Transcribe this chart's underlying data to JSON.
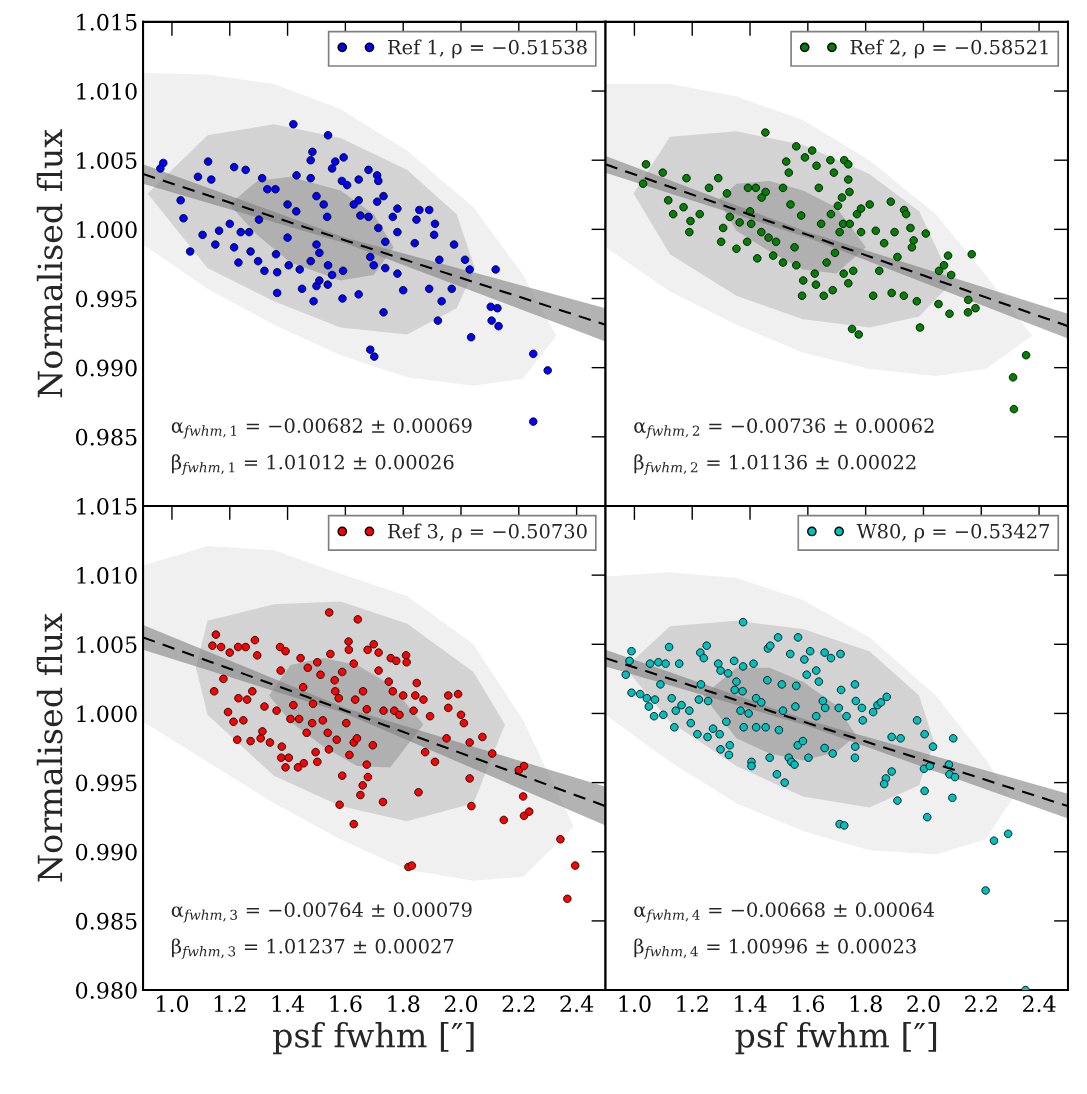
{
  "chart_data": [
    {
      "type": "scatter",
      "ylabel": "Normalised flux",
      "xlim": [
        0.9,
        2.5
      ],
      "ylim": [
        0.98,
        1.015
      ],
      "xticks": [
        {
          "value": 1,
          "label": null
        },
        {
          "value": 1.2,
          "label": null
        },
        {
          "value": 1.4,
          "label": null
        },
        {
          "value": 1.6,
          "label": null
        },
        {
          "value": 1.8,
          "label": null
        },
        {
          "value": 2,
          "label": null
        },
        {
          "value": 2.2,
          "label": null
        },
        {
          "value": 2.4,
          "label": null
        }
      ],
      "yticks": [
        0.985,
        {
          "value": 0.99,
          "label": "0.990"
        },
        0.995,
        {
          "value": 1.0,
          "label": "1.000"
        },
        1.005,
        {
          "value": 1.01,
          "label": "1.010"
        },
        1.015
      ],
      "tick_labels": "y",
      "legend": "top right",
      "annotations": [
        "α$_{fwhm,1}$ = −0.00682 ± 0.00069",
        "β$_{fwhm,1}$ = 1.01012 ± 0.00026"
      ],
      "series": [
        {
          "type": "area",
          "color": "#f0f0f0",
          "x": [
            0.9,
            1.123,
            1.353,
            1.583,
            1.813,
            2.043,
            2.215,
            2.33,
            2.215,
            2.043,
            1.813,
            1.583,
            1.353,
            1.123,
            0.9
          ],
          "values": [
            1.0113,
            1.0112,
            1.0105,
            1.0087,
            1.0057,
            1.0016,
            0.9967,
            0.9923,
            0.9892,
            0.9887,
            0.9893,
            0.9909,
            0.9931,
            0.9957,
            0.9989
          ]
        },
        {
          "type": "area",
          "color": "#d3d3d3",
          "x": [
            0.916,
            1.123,
            1.353,
            1.583,
            1.813,
            1.985,
            2.048,
            1.985,
            1.813,
            1.583,
            1.353,
            1.123
          ],
          "values": [
            1.0026,
            1.0068,
            1.0076,
            1.0066,
            1.0043,
            1.0011,
            0.9972,
            0.9943,
            0.9924,
            0.9929,
            0.9948,
            0.9972
          ]
        },
        {
          "type": "area",
          "color": "#b0b0b0",
          "x": [
            1.198,
            1.295,
            1.41,
            1.583,
            1.698,
            1.767,
            1.698,
            1.583,
            1.41,
            1.295
          ],
          "values": [
            1.0018,
            1.0035,
            1.0038,
            1.0028,
            1.0011,
            0.9987,
            0.9967,
            0.9963,
            0.9976,
            0.9996
          ]
        },
        {
          "type": "scatter",
          "name": "Ref 1, ρ = −0.51538",
          "color": "#0000ff",
          "marker": "circle",
          "x": [
            1.42,
            1.54,
            0.97,
            1.125,
            1.215,
            1.255,
            1.03,
            1.063,
            1.04,
            1.106,
            1.15,
            1.2,
            1.136,
            1.09,
            1.215,
            1.23,
            1.272,
            1.298,
            1.32,
            1.364,
            1.364,
            1.312,
            1.33,
            1.358,
            1.4,
            1.43,
            1.4,
            1.404,
            1.442,
            1.45,
            1.49,
            1.5,
            1.51,
            1.5,
            1.51,
            1.48,
            1.431,
            1.48,
            1.486,
            1.48,
            1.5,
            1.525,
            1.537,
            1.54,
            1.554,
            1.539,
            1.59,
            1.594,
            1.565,
            1.554,
            1.606,
            1.588,
            1.629,
            1.646,
            1.652,
            1.646,
            1.68,
            1.71,
            1.714,
            1.732,
            1.71,
            1.68,
            1.714,
            1.764,
            1.78,
            1.78,
            1.738,
            1.738,
            1.698,
            1.686,
            1.646,
            1.592,
            1.732,
            1.686,
            1.7,
            1.78,
            1.8,
            1.84,
            1.846,
            1.856,
            1.89,
            1.91,
            1.907,
            1.89,
            1.976,
            1.925,
            1.933,
            1.92,
            1.968,
            2.014,
            2.03,
            2.035,
            2.103,
            2.12,
            2.126,
            2.13,
            2.106,
            2.25,
            2.3,
            2.25,
            0.96,
            1.163,
            1.238,
            1.267,
            1.36,
            1.301
          ],
          "values": [
            1.0076,
            1.0068,
            1.0048,
            1.0049,
            1.0045,
            1.0043,
            1.0021,
            0.9984,
            1.0008,
            0.9996,
            0.9989,
            1.0004,
            1.0036,
            1.0038,
            0.9987,
            0.9976,
            0.9984,
            0.9977,
            0.997,
            0.9954,
            0.9969,
            1.0037,
            1.0029,
            1.0029,
            1.0018,
            1.0013,
            0.9994,
            0.9974,
            0.9971,
            0.9957,
            0.9948,
            0.9959,
            0.9963,
            0.9989,
            0.9983,
            0.9977,
            1.0039,
            1.005,
            1.0056,
            1.0037,
            1.0024,
            1.0018,
            1.0009,
            0.9974,
            0.9967,
            0.996,
            0.995,
            1.0052,
            1.0049,
            1.0044,
            1.0032,
            1.0035,
            1.0018,
            1.0021,
            1.001,
            1.0036,
            1.0043,
            1.0039,
            1.0035,
            1.0024,
            1.002,
            1.0009,
            1.0001,
            1.0009,
            1.0015,
            0.9998,
            0.9991,
            0.9972,
            0.9974,
            0.998,
            0.9953,
            0.997,
            0.994,
            0.9913,
            0.9908,
            0.9968,
            0.9956,
            0.999,
            1.0007,
            1.0014,
            1.0014,
            1.0004,
            0.9996,
            0.9957,
            0.9989,
            0.9978,
            0.9948,
            0.9934,
            0.9957,
            0.9978,
            0.9971,
            0.9922,
            0.9944,
            0.9971,
            0.9943,
            0.993,
            0.9934,
            0.991,
            0.9898,
            0.9861,
            1.0044,
            0.9999,
            0.9998,
            0.9998,
            0.9982,
            1.0007
          ]
        },
        {
          "type": "line",
          "color": "#000000",
          "line_style": "dashed",
          "marker": "none",
          "x": [
            0.9,
            1.6,
            2.5
          ],
          "values": [
            1.004,
            0.9992,
            0.9931
          ],
          "lower": [
            1.0033,
            0.999,
            0.9919
          ],
          "upper": [
            1.0047,
            0.9994,
            0.9943
          ]
        }
      ]
    },
    {
      "type": "scatter",
      "xlim": [
        0.9,
        2.5
      ],
      "ylim": [
        0.98,
        1.015
      ],
      "xticks": [
        {
          "value": 1,
          "label": null
        },
        {
          "value": 1.2,
          "label": null
        },
        {
          "value": 1.4,
          "label": null
        },
        {
          "value": 1.6,
          "label": null
        },
        {
          "value": 1.8,
          "label": null
        },
        {
          "value": 2,
          "label": null
        },
        {
          "value": 2.2,
          "label": null
        },
        {
          "value": 2.4,
          "label": null
        }
      ],
      "yticks": [
        {
          "value": 0.985,
          "label": null
        },
        {
          "value": 0.99,
          "label": null
        },
        {
          "value": 0.995,
          "label": null
        },
        {
          "value": 1,
          "label": null
        },
        {
          "value": 1.005,
          "label": null
        },
        {
          "value": 1.01,
          "label": null
        },
        {
          "value": 1.015,
          "label": null
        }
      ],
      "tick_labels": false,
      "legend": "top right",
      "annotations": [
        "α$_{fwhm,2}$ = −0.00736 ± 0.00062",
        "β$_{fwhm,2}$ = 1.01136 ± 0.00022"
      ],
      "series": [
        {
          "type": "area",
          "color": "#f0f0f0",
          "x": [
            0.9,
            1.123,
            1.353,
            1.583,
            1.813,
            2.043,
            2.215,
            2.376,
            2.215,
            2.043,
            1.813,
            1.583,
            1.353,
            1.123,
            0.9
          ],
          "values": [
            1.0105,
            1.0105,
            1.0096,
            1.0079,
            1.005,
            1.0011,
            0.9967,
            0.9923,
            0.9899,
            0.9894,
            0.9899,
            0.9911,
            0.9931,
            0.9955,
            0.9987
          ]
        },
        {
          "type": "area",
          "color": "#d3d3d3",
          "x": [
            0.997,
            1.123,
            1.353,
            1.583,
            1.813,
            1.985,
            2.1,
            1.985,
            1.813,
            1.583,
            1.353,
            1.123
          ],
          "values": [
            1.0026,
            1.0067,
            1.0071,
            1.0061,
            1.004,
            1.0013,
            0.9962,
            0.9937,
            0.9929,
            0.9935,
            0.9952,
            0.9982
          ]
        },
        {
          "type": "area",
          "color": "#b0b0b0",
          "x": [
            1.29,
            1.353,
            1.468,
            1.583,
            1.698,
            1.801,
            1.698,
            1.583,
            1.468,
            1.353
          ],
          "values": [
            1.0021,
            1.0033,
            1.0035,
            1.0028,
            1.0016,
            0.9987,
            0.9968,
            0.9971,
            0.9984,
            0.9999
          ]
        },
        {
          "type": "scatter",
          "name": "Ref 2, ρ = −0.58521",
          "color": "#008000",
          "marker": "circle",
          "x": [
            1.453,
            1.56,
            1.04,
            1.098,
            1.18,
            1.03,
            1.117,
            1.134,
            1.19,
            1.194,
            1.17,
            1.226,
            1.258,
            1.29,
            1.32,
            1.307,
            1.3,
            1.353,
            1.33,
            1.364,
            1.393,
            1.42,
            1.454,
            1.44,
            1.4,
            1.404,
            1.39,
            1.425,
            1.439,
            1.464,
            1.49,
            1.48,
            1.514,
            1.525,
            1.534,
            1.54,
            1.514,
            1.554,
            1.56,
            1.58,
            1.584,
            1.577,
            1.59,
            1.615,
            1.63,
            1.638,
            1.646,
            1.624,
            1.628,
            1.655,
            1.686,
            1.665,
            1.694,
            1.68,
            1.678,
            1.69,
            1.726,
            1.74,
            1.74,
            1.744,
            1.718,
            1.704,
            1.722,
            1.745,
            1.71,
            1.77,
            1.784,
            1.814,
            1.784,
            1.724,
            1.74,
            1.757,
            1.753,
            1.776,
            1.826,
            1.835,
            1.847,
            1.864,
            1.887,
            1.9,
            1.91,
            1.89,
            1.933,
            1.94,
            1.955,
            1.966,
            1.96,
            1.932,
            1.977,
            1.988,
            2.008,
            2.052,
            2.054,
            2.071,
            2.085,
            2.096,
            2.09,
            2.154,
            2.155,
            2.18,
            2.167,
            2.355,
            2.31,
            2.313
          ],
          "values": [
            1.007,
            1.006,
            1.0047,
            1.0041,
            1.0037,
            1.0033,
            1.0021,
            1.0011,
            0.9998,
            1.0006,
            1.0016,
            1.0011,
            1.003,
            1.0037,
            1.0026,
            1.0001,
            0.9991,
            0.9986,
            1.0009,
            1.0005,
            1.003,
            1.003,
            1.0027,
            1.0023,
            1.0013,
            1.0004,
            0.9991,
            0.9979,
            0.9998,
            0.9994,
            0.9991,
            0.9981,
            1.003,
            1.0049,
            1.0041,
            1.0018,
            0.9976,
            0.9987,
            0.9974,
            0.9952,
            0.9963,
            1.001,
            1.0052,
            1.0057,
            1.0046,
            1.003,
            1.0004,
            0.9968,
            0.996,
            0.9952,
            0.9956,
            0.9976,
            0.9983,
            1.0011,
            1.005,
            1.0041,
            1.005,
            1.0047,
            1.0036,
            1.0027,
            1.0023,
            1.0017,
            1.0004,
            1.0004,
            0.9998,
            1.0011,
            1.0015,
            1.0018,
            0.9998,
            0.9968,
            0.9961,
            0.997,
            0.9928,
            0.9924,
            0.9952,
            0.9999,
            0.997,
            0.999,
            1.002,
            0.9998,
            0.998,
            0.9954,
            1.0014,
            1.0011,
            1.0001,
            0.9992,
            0.9987,
            0.9952,
            0.9948,
            0.9929,
            0.9997,
            0.9946,
            0.997,
            0.9974,
            0.9981,
            0.9967,
            0.9939,
            0.994,
            0.9949,
            0.9943,
            0.9982,
            0.9909,
            0.9893,
            0.987
          ]
        },
        {
          "type": "line",
          "color": "#000000",
          "line_style": "dashed",
          "marker": "none",
          "x": [
            0.9,
            1.6,
            2.5
          ],
          "values": [
            1.0047,
            0.9996,
            0.993
          ],
          "lower": [
            1.0041,
            0.9994,
            0.9921
          ],
          "upper": [
            1.0053,
            0.9998,
            0.9939
          ]
        }
      ]
    },
    {
      "type": "scatter",
      "xlabel": "psf fwhm [″]",
      "ylabel": "Normalised flux",
      "xlim": [
        0.9,
        2.5
      ],
      "ylim": [
        0.98,
        1.015
      ],
      "xticks": [
        {
          "value": 1,
          "label": "1.0"
        },
        1.2,
        1.4,
        1.6,
        1.8,
        {
          "value": 2,
          "label": "2.0"
        },
        2.2,
        2.4
      ],
      "yticks": [
        {
          "value": 0.98,
          "label": "0.980"
        },
        0.985,
        {
          "value": 0.99,
          "label": "0.990"
        },
        0.995,
        {
          "value": 1.0,
          "label": "1.000"
        },
        1.005,
        {
          "value": 1.01,
          "label": "1.010"
        },
        1.015
      ],
      "legend": "top right",
      "annotations": [
        "α$_{fwhm,3}$ = −0.00764 ± 0.00079",
        "β$_{fwhm,3}$ = 1.01237 ± 0.00027"
      ],
      "series": [
        {
          "type": "area",
          "color": "#f0f0f0",
          "x": [
            0.9,
            1.123,
            1.353,
            1.583,
            1.813,
            2.043,
            2.215,
            2.39,
            2.215,
            2.043,
            1.813,
            1.583,
            1.353,
            1.123,
            0.9
          ],
          "values": [
            1.0107,
            1.0121,
            1.0118,
            1.0101,
            1.0085,
            1.005,
            0.9995,
            0.9918,
            0.9882,
            0.9879,
            0.9887,
            0.9909,
            0.9935,
            0.9965,
            0.9994
          ]
        },
        {
          "type": "area",
          "color": "#d3d3d3",
          "x": [
            1.083,
            1.123,
            1.353,
            1.583,
            1.813,
            2.043,
            2.152,
            2.043,
            1.813,
            1.583,
            1.353,
            1.123
          ],
          "values": [
            1.0033,
            1.0067,
            1.0079,
            1.0081,
            1.0065,
            1.003,
            0.9992,
            0.9935,
            0.9922,
            0.9933,
            0.9955,
            0.9999
          ]
        },
        {
          "type": "area",
          "color": "#b0b0b0",
          "x": [
            1.336,
            1.41,
            1.525,
            1.64,
            1.755,
            1.87,
            1.755,
            1.64,
            1.525,
            1.41
          ],
          "values": [
            1.0013,
            1.0035,
            1.004,
            1.0035,
            1.0021,
            0.9992,
            0.9961,
            0.9962,
            0.9976,
            0.9994
          ]
        },
        {
          "type": "scatter",
          "name": "Ref 3, ρ = −0.50730",
          "color": "#ff0000",
          "marker": "circle",
          "x": [
            1.544,
            1.643,
            1.152,
            1.14,
            1.17,
            1.287,
            1.2,
            1.229,
            1.255,
            1.295,
            1.146,
            1.178,
            1.194,
            1.213,
            1.226,
            1.23,
            1.26,
            1.278,
            1.247,
            1.272,
            1.307,
            1.313,
            1.32,
            1.339,
            1.362,
            1.376,
            1.374,
            1.393,
            1.38,
            1.378,
            1.393,
            1.404,
            1.41,
            1.42,
            1.44,
            1.436,
            1.456,
            1.466,
            1.497,
            1.503,
            1.445,
            1.47,
            1.503,
            1.514,
            1.454,
            1.488,
            1.485,
            1.522,
            1.548,
            1.563,
            1.565,
            1.577,
            1.539,
            1.543,
            1.57,
            1.603,
            1.611,
            1.612,
            1.589,
            1.629,
            1.661,
            1.634,
            1.629,
            1.64,
            1.614,
            1.589,
            1.58,
            1.629,
            1.652,
            1.66,
            1.678,
            1.674,
            1.674,
            1.695,
            1.698,
            1.677,
            1.715,
            1.715,
            1.73,
            1.732,
            1.75,
            1.757,
            1.776,
            1.764,
            1.769,
            1.787,
            1.8,
            1.81,
            1.812,
            1.847,
            1.842,
            1.87,
            1.836,
            1.893,
            1.876,
            1.853,
            1.818,
            1.83,
            1.91,
            1.95,
            1.956,
            1.956,
            1.99,
            2.0,
            2.01,
            2.03,
            2.074,
            2.03,
            2.036,
            2.108,
            2.148,
            2.2,
            2.218,
            2.215,
            2.218,
            2.236,
            2.344,
            2.395,
            2.368
          ],
          "values": [
            1.0073,
            1.0068,
            1.0057,
            1.0049,
            1.0048,
            1.0053,
            1.0044,
            1.0048,
            1.0048,
            1.0042,
            1.0016,
            1.0025,
            1.0001,
            0.9994,
            0.9981,
            1.0011,
            1.001,
            1.0016,
            0.9995,
            0.998,
            0.9982,
            0.9987,
            1.0005,
            0.9979,
            1.0002,
            1.0031,
            1.0048,
            1.0045,
            0.9976,
            0.9968,
            0.9961,
            0.9968,
            0.9996,
            1.0006,
            0.9996,
            0.9961,
            0.9964,
            0.9986,
            0.9972,
            0.9965,
            1.004,
            1.0033,
            1.0037,
            1.0028,
            1.0019,
            1.0007,
            0.9993,
            0.9995,
            1.0043,
            1.0024,
            1.0016,
            1.0011,
            0.9986,
            0.9974,
            0.9981,
            0.9993,
            1.0052,
            1.0046,
            1.003,
            1.0036,
            1.0016,
            1.001,
            0.9979,
            0.9982,
            0.997,
            0.9955,
            0.9934,
            0.992,
            0.9941,
            0.9948,
            0.9954,
            0.9963,
            1.0003,
            0.9977,
            1.005,
            1.0046,
            1.0044,
            1.0031,
            0.9936,
            1.0002,
            1.0023,
            1.004,
            1.0038,
            1.0016,
            1.0002,
            0.9999,
            1.0013,
            1.0042,
            1.0037,
            1.0022,
            1.0013,
            1.001,
            1.0002,
            0.9998,
            0.9972,
            0.9943,
            0.9889,
            0.989,
            0.9965,
            0.9982,
            1.0004,
            1.0013,
            1.0014,
            0.9999,
            0.9993,
            0.9979,
            0.9983,
            0.9953,
            0.9933,
            0.9971,
            0.9923,
            0.9959,
            0.9962,
            0.994,
            0.9926,
            0.9929,
            0.9909,
            0.989,
            0.9866
          ]
        },
        {
          "type": "line",
          "color": "#000000",
          "line_style": "dashed",
          "marker": "none",
          "x": [
            0.9,
            1.6,
            2.5
          ],
          "values": [
            1.0055,
            1.0002,
            0.9933
          ],
          "lower": [
            1.0046,
            1.0,
            0.9919
          ],
          "upper": [
            1.0064,
            1.0004,
            0.9947
          ]
        }
      ]
    },
    {
      "type": "scatter",
      "xlabel": "psf fwhm [″]",
      "xlim": [
        0.9,
        2.5
      ],
      "ylim": [
        0.98,
        1.015
      ],
      "xticks": [
        {
          "value": 1,
          "label": "1.0"
        },
        1.2,
        1.4,
        1.6,
        1.8,
        {
          "value": 2,
          "label": "2.0"
        },
        2.2,
        2.4
      ],
      "yticks": [
        {
          "value": 0.98,
          "label": null
        },
        {
          "value": 0.985,
          "label": null
        },
        {
          "value": 0.99,
          "label": null
        },
        {
          "value": 0.995,
          "label": null
        },
        {
          "value": 1,
          "label": null
        },
        {
          "value": 1.005,
          "label": null
        },
        {
          "value": 1.01,
          "label": null
        },
        {
          "value": 1.015,
          "label": null
        }
      ],
      "tick_labels": "x",
      "legend": "top right",
      "annotations": [
        "α$_{fwhm,4}$ = −0.00668 ± 0.00064",
        "β$_{fwhm,4}$ = 1.00996 ± 0.00023"
      ],
      "series": [
        {
          "type": "area",
          "color": "#f0f0f0",
          "x": [
            0.9,
            1.123,
            1.353,
            1.583,
            1.813,
            2.043,
            2.215,
            2.307,
            2.215,
            2.043,
            1.813,
            1.583,
            1.353,
            1.123,
            0.9
          ],
          "values": [
            1.0099,
            1.0102,
            1.0098,
            1.0082,
            1.0055,
            1.0013,
            0.9967,
            0.9938,
            0.9909,
            0.9898,
            0.9901,
            0.9915,
            0.9935,
            0.9965,
            0.9999
          ]
        },
        {
          "type": "area",
          "color": "#d3d3d3",
          "x": [
            0.968,
            1.123,
            1.353,
            1.583,
            1.813,
            1.985,
            2.037,
            1.985,
            1.813,
            1.583,
            1.353,
            1.123
          ],
          "values": [
            1.0033,
            1.0063,
            1.0067,
            1.0061,
            1.0045,
            1.0013,
            0.9979,
            0.9948,
            0.9932,
            0.994,
            0.9962,
            0.9994
          ]
        },
        {
          "type": "area",
          "color": "#b0b0b0",
          "x": [
            1.238,
            1.353,
            1.468,
            1.583,
            1.698,
            1.767,
            1.698,
            1.583,
            1.468,
            1.353
          ],
          "values": [
            1.0013,
            1.0033,
            1.0033,
            1.0023,
            1.0006,
            0.9984,
            0.9972,
            0.9966,
            0.9971,
            0.9982
          ]
        },
        {
          "type": "scatter",
          "name": "W80, ρ = −0.53427",
          "color": "#00bfbf",
          "marker": "circle",
          "x": [
            1.376,
            1.497,
            1.566,
            0.99,
            0.97,
            0.983,
            0.99,
            1.02,
            1.054,
            1.083,
            1.108,
            1.12,
            1.155,
            1.09,
            1.043,
            1.05,
            1.068,
            1.071,
            1.1,
            1.129,
            1.143,
            1.138,
            1.163,
            1.19,
            1.195,
            1.218,
            1.228,
            1.25,
            1.24,
            1.23,
            1.223,
            1.255,
            1.253,
            1.272,
            1.295,
            1.298,
            1.327,
            1.33,
            1.318,
            1.29,
            1.298,
            1.324,
            1.345,
            1.353,
            1.376,
            1.347,
            1.374,
            1.367,
            1.378,
            1.395,
            1.405,
            1.405,
            1.412,
            1.421,
            1.421,
            1.439,
            1.454,
            1.462,
            1.46,
            1.47,
            1.468,
            1.493,
            1.5,
            1.51,
            1.514,
            1.52,
            1.534,
            1.543,
            1.554,
            1.56,
            1.557,
            1.539,
            1.565,
            1.583,
            1.588,
            1.596,
            1.602,
            1.608,
            1.629,
            1.629,
            1.638,
            1.652,
            1.66,
            1.658,
            1.658,
            1.68,
            1.686,
            1.707,
            1.713,
            1.715,
            1.734,
            1.763,
            1.766,
            1.764,
            1.763,
            1.787,
            1.79,
            1.826,
            1.841,
            1.853,
            1.873,
            1.89,
            1.921,
            1.89,
            1.87,
            1.864,
            1.91,
            1.71,
            1.726,
            1.978,
            2.004,
            2.002,
            2.004,
            2.013,
            2.033,
            2.022,
            2.088,
            2.09,
            2.109,
            2.1,
            2.103,
            2.244,
            2.293,
            2.215,
            2.353
          ],
          "values": [
            1.0066,
            1.0055,
            1.0055,
            1.0045,
            1.0028,
            1.0038,
            1.0015,
            1.0014,
            1.0036,
            1.0037,
            1.0036,
            1.0048,
            1.0036,
            1.0021,
            1.0011,
            1.0005,
            0.9998,
            1.001,
            0.9999,
            1.0011,
            1.0002,
            0.999,
            1.0006,
            1.0002,
            0.9993,
            0.9985,
            1.0044,
            1.0049,
            1.004,
            1.0021,
            1.001,
            1.0009,
            0.9983,
            0.9989,
            0.9985,
            0.9974,
            0.997,
            0.9977,
            0.9994,
            1.0036,
            1.0031,
            1.0029,
            1.0038,
            1.0023,
            1.0034,
            1.0017,
            1.0016,
            1.0002,
            0.999,
            1.0,
            0.9965,
            0.9962,
            1.0036,
            1.0011,
            0.999,
            1.0008,
            0.999,
            1.0047,
            1.0024,
            1.0049,
            0.9968,
            0.9956,
            0.9988,
            1.0021,
            1.0002,
            0.995,
            0.9968,
            0.9965,
            0.9963,
            1.002,
            1.0005,
            1.0043,
            0.9977,
            0.998,
            1.0039,
            1.0028,
            0.9968,
            1.0045,
            0.9998,
            1.0031,
            1.0023,
            1.0009,
            1.0004,
            0.9975,
            1.0044,
            1.004,
            0.9971,
            1.0004,
            1.0043,
            1.0017,
            0.9998,
            1.0021,
            1.0009,
            0.9976,
            0.9968,
            1.0004,
            0.9995,
            1.0001,
            1.0006,
            1.0008,
            1.0012,
            0.9983,
            0.9982,
            0.9958,
            0.9953,
            0.9949,
            0.9937,
            0.992,
            0.9919,
            0.9995,
            0.9985,
            0.996,
            0.9944,
            0.9925,
            0.9976,
            0.9962,
            0.9963,
            0.9956,
            0.9954,
            0.9939,
            0.9982,
            0.9908,
            0.9913,
            0.9872,
            0.98
          ]
        },
        {
          "type": "line",
          "color": "#000000",
          "line_style": "dashed",
          "marker": "none",
          "x": [
            0.9,
            1.6,
            2.5
          ],
          "values": [
            1.004,
            0.9993,
            0.9933
          ],
          "lower": [
            1.0034,
            0.9991,
            0.9924
          ],
          "upper": [
            1.0046,
            0.9995,
            0.9942
          ]
        }
      ]
    }
  ]
}
